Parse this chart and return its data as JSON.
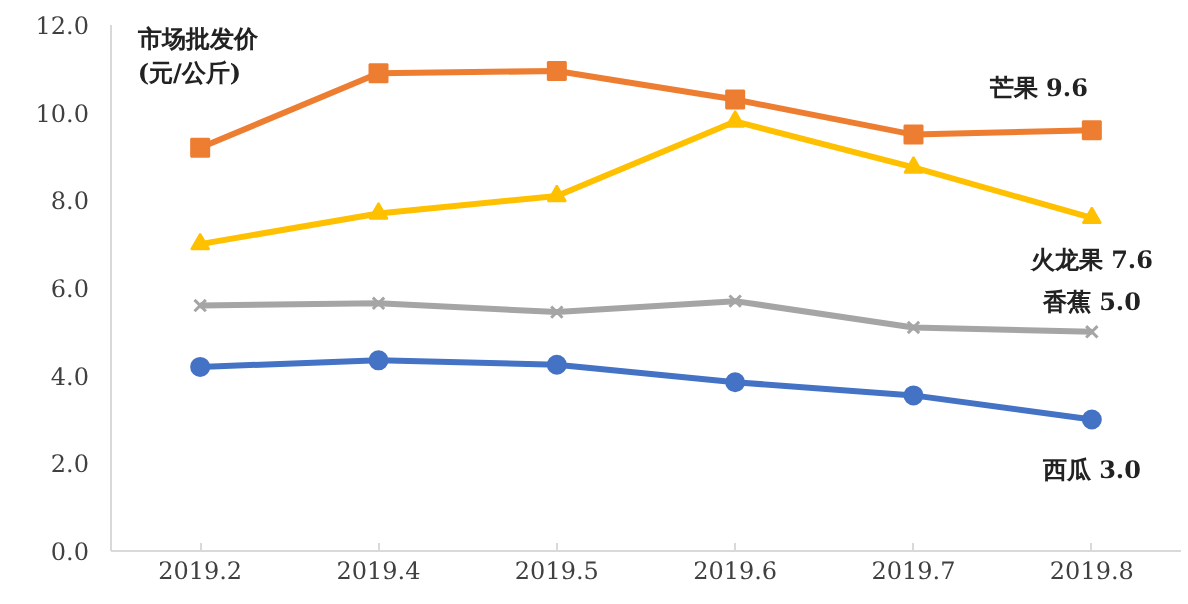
{
  "chart_data": {
    "type": "line",
    "ylabel": "市场批发价\n(元/公斤)",
    "categories": [
      "2019.2",
      "2019.4",
      "2019.5",
      "2019.6",
      "2019.7",
      "2019.8"
    ],
    "ylim": [
      0,
      12
    ],
    "yticks": [
      {
        "value": 0,
        "label": "0.0"
      },
      {
        "value": 2,
        "label": "2.0"
      },
      {
        "value": 4,
        "label": "4.0"
      },
      {
        "value": 6,
        "label": "6.0"
      },
      {
        "value": 8,
        "label": "8.0"
      },
      {
        "value": 10,
        "label": "10.0"
      },
      {
        "value": 12,
        "label": "12.0"
      }
    ],
    "grid": false,
    "legend": false,
    "series": [
      {
        "name": "芒果",
        "color": "#ed7d31",
        "marker": "square",
        "values": [
          9.2,
          10.9,
          10.95,
          10.3,
          9.5,
          9.6
        ],
        "value_labels": [
          null,
          null,
          null,
          null,
          null,
          "9.6"
        ]
      },
      {
        "name": "火龙果",
        "color": "#ffc000",
        "marker": "triangle",
        "values": [
          7.0,
          7.7,
          8.1,
          9.8,
          8.75,
          7.6
        ],
        "value_labels": [
          null,
          null,
          null,
          null,
          null,
          "7.6"
        ]
      },
      {
        "name": "香蕉",
        "color": "#a5a5a5",
        "marker": "cross",
        "values": [
          5.6,
          5.65,
          5.45,
          5.7,
          5.1,
          5.0
        ],
        "value_labels": [
          null,
          null,
          null,
          null,
          null,
          "5.0"
        ]
      },
      {
        "name": "西瓜",
        "color": "#4472c4",
        "marker": "circle",
        "values": [
          4.2,
          4.35,
          4.25,
          3.85,
          3.55,
          3.0
        ],
        "value_labels": [
          null,
          null,
          null,
          null,
          null,
          "3.0"
        ]
      }
    ]
  }
}
